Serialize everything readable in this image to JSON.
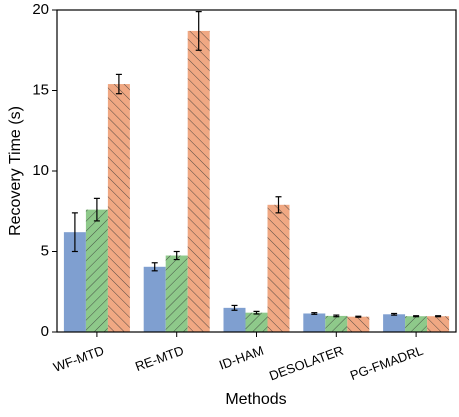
{
  "chart_data": {
    "type": "bar",
    "x_label": "Methods",
    "y_label": "Recovery Time (s)",
    "categories": [
      "WF-MTD",
      "RE-MTD",
      "ID-HAM",
      "DESOLATER",
      "PG-FMADRL"
    ],
    "series": [
      {
        "color": "#7f9fd0",
        "hatch": "none",
        "values": [
          6.2,
          4.05,
          1.5,
          1.15,
          1.1
        ],
        "errors": [
          1.2,
          0.25,
          0.15,
          0.05,
          0.05
        ]
      },
      {
        "color": "#8ec98a",
        "hatch": "forward",
        "values": [
          7.6,
          4.75,
          1.2,
          1.0,
          0.98
        ],
        "errors": [
          0.7,
          0.25,
          0.08,
          0.05,
          0.03
        ]
      },
      {
        "color": "#f0a883",
        "hatch": "back",
        "values": [
          15.4,
          18.7,
          7.9,
          0.95,
          0.98
        ],
        "errors": [
          0.6,
          1.2,
          0.5,
          0.03,
          0.03
        ]
      }
    ],
    "ylim": [
      0,
      20
    ],
    "yticks": [
      0,
      5,
      10,
      15,
      20
    ]
  }
}
